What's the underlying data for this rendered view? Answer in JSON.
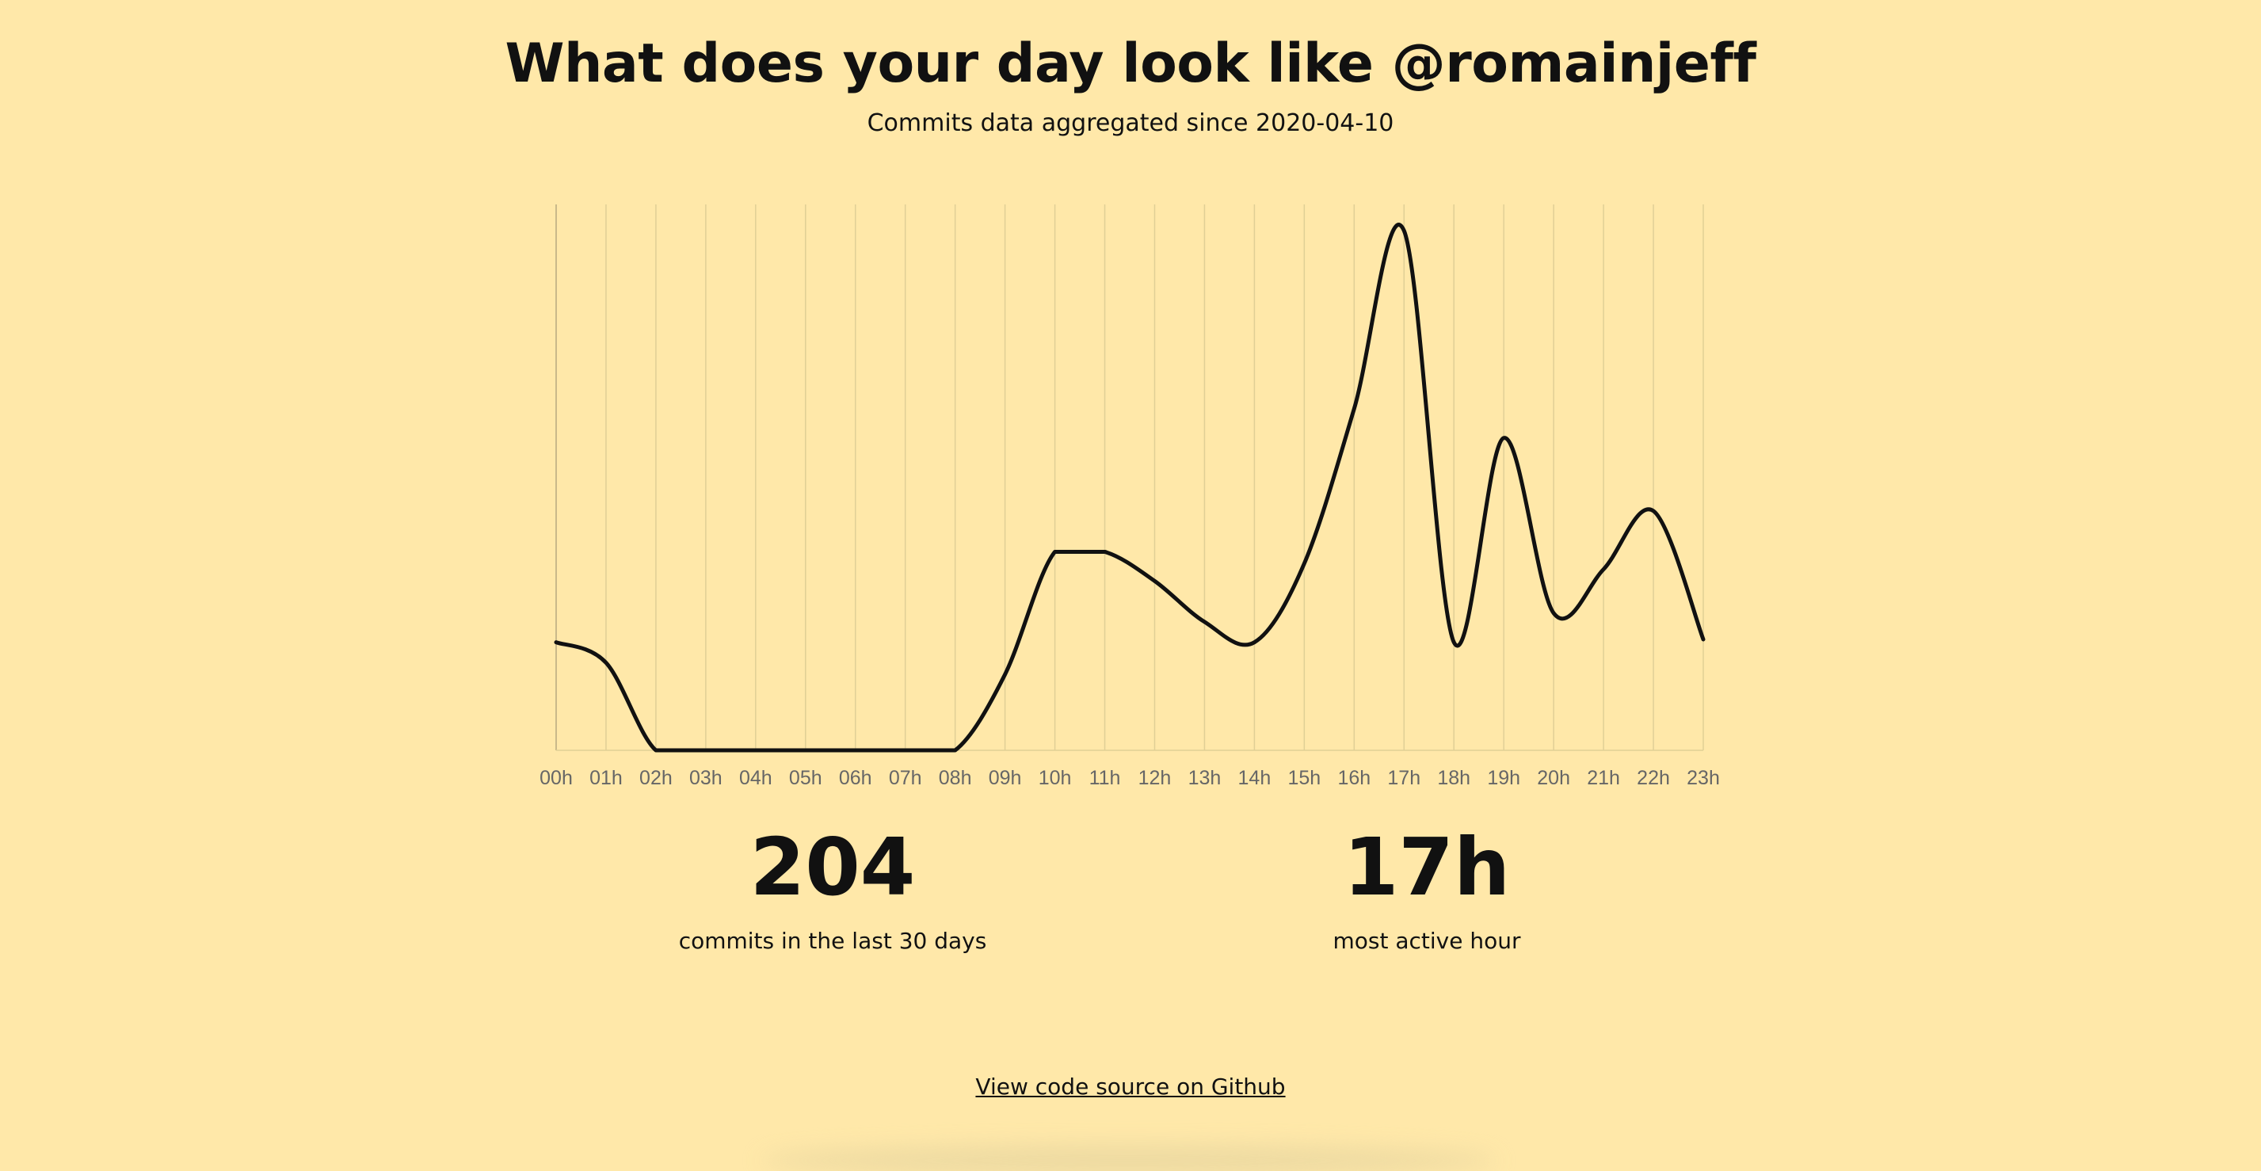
{
  "header": {
    "title": "What does your day look like @romainjeff",
    "subtitle": "Commits data aggregated since 2020-04-10"
  },
  "stats": {
    "commits_value": "204",
    "commits_label": "commits in the last 30 days",
    "active_hour_value": "17h",
    "active_hour_label": "most active hour"
  },
  "footer": {
    "source_link": "View code source on Github"
  },
  "colors": {
    "background": "#ffe8a9",
    "line": "#111111",
    "grid": "#e0cf96",
    "tick_text": "#666666"
  },
  "chart_data": {
    "type": "line",
    "categories": [
      "00h",
      "01h",
      "02h",
      "03h",
      "04h",
      "05h",
      "06h",
      "07h",
      "08h",
      "09h",
      "10h",
      "11h",
      "12h",
      "13h",
      "14h",
      "15h",
      "16h",
      "17h",
      "18h",
      "19h",
      "20h",
      "21h",
      "22h",
      "23h"
    ],
    "values": [
      3.7,
      3.0,
      0,
      0,
      0,
      0,
      0,
      0,
      0,
      2.6,
      6.8,
      6.8,
      5.8,
      4.4,
      3.7,
      6.4,
      11.7,
      17.8,
      3.7,
      10.7,
      4.7,
      6.2,
      8.2,
      3.8
    ],
    "ylim": [
      0,
      18.7
    ],
    "grid": "vertical",
    "line_style": "smooth"
  }
}
